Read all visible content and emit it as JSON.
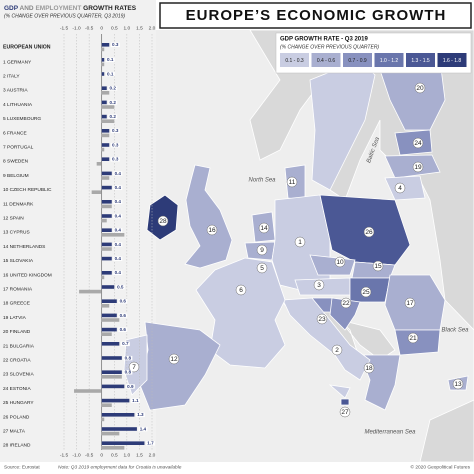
{
  "chart_data": {
    "type": "bar",
    "orientation": "horizontal",
    "title": "GROWTH RATES",
    "title_connector": "AND",
    "subtitle": "(% CHANGE OVER PREVIOUS QUARTER, Q3 2019)",
    "categories": [
      "EUROPEAN UNION",
      "1 GERMANY",
      "2 ITALY",
      "3 AUSTRIA",
      "4 LITHUANIA",
      "5 LUXEMBOURG",
      "6 FRANCE",
      "7 PORTUGAL",
      "8 SWEDEN",
      "9 BELGIUM",
      "10 CZECH REPUBLIC",
      "11 DENMARK",
      "12 SPAIN",
      "13 CYPRUS",
      "14 NETHERLANDS",
      "15 SLOVAKIA",
      "16 UNITED KINGDOM",
      "17 ROMANIA",
      "18 GREECE",
      "19 LATVIA",
      "20 FINLAND",
      "21 BULGARIA",
      "22 CROATIA",
      "23 SLOVENIA",
      "24 ESTONIA",
      "25 HUNGARY",
      "26 POLAND",
      "27 MALTA",
      "28 IRELAND"
    ],
    "series": [
      {
        "name": "GDP",
        "color": "#2d3b78",
        "values": [
          0.3,
          0.1,
          0.1,
          0.2,
          0.2,
          0.2,
          0.3,
          0.3,
          0.3,
          0.4,
          0.4,
          0.4,
          0.4,
          0.4,
          0.4,
          0.4,
          0.4,
          0.5,
          0.6,
          0.6,
          0.6,
          0.7,
          0.8,
          0.8,
          0.9,
          1.1,
          1.3,
          1.4,
          1.7
        ]
      },
      {
        "name": "EMPLOYMENT",
        "color": "#a9a9a9",
        "values": [
          0.1,
          0.1,
          0.0,
          0.3,
          0.5,
          0.5,
          0.3,
          0.1,
          -0.2,
          0.3,
          -0.4,
          0.4,
          0.2,
          0.9,
          0.4,
          0.0,
          0.1,
          -0.9,
          0.3,
          0.7,
          0.4,
          0.0,
          null,
          0.8,
          -1.1,
          0.4,
          0.1,
          0.7,
          0.9
        ]
      }
    ],
    "xlim": [
      -1.5,
      2.0
    ],
    "xticks": [
      -1.5,
      {
        "value": -1,
        "label": "-1.0"
      },
      -0.5,
      0,
      0.5,
      {
        "value": 1,
        "label": "1.0"
      },
      1.5,
      {
        "value": 2,
        "label": "2.0"
      }
    ],
    "grid": true
  },
  "map": {
    "title": "EUROPE’S ECONOMIC GROWTH",
    "legend": {
      "title": "GDP GROWTH RATE - Q3 2019",
      "subtitle": "(% CHANGE OVER PREVIOUS QUARTER)",
      "items": [
        {
          "label": "0.1 - 0.3",
          "color": "#c9cde2"
        },
        {
          "label": "0.4 - 0.6",
          "color": "#a9afd0"
        },
        {
          "label": "0.7 - 0.9",
          "color": "#8891bf"
        },
        {
          "label": "1.0 - 1.2",
          "color": "#6a76ac"
        },
        {
          "label": "1.3 - 1.5",
          "color": "#4b5895"
        },
        {
          "label": "1.6 - 1.8",
          "color": "#2d3b78"
        }
      ]
    },
    "labels": [
      "20",
      "24",
      "19",
      "4",
      "11",
      "28",
      "16",
      "14",
      "9",
      "5",
      "1",
      "26",
      "10",
      "15",
      "3",
      "25",
      "6",
      "22",
      "23",
      "17",
      "21",
      "2",
      "18",
      "12",
      "7",
      "13",
      "27"
    ],
    "seas": [
      "North Sea",
      "Baltic Sea",
      "Black Sea",
      "Mediterranean Sea"
    ]
  },
  "footer": {
    "source": "Source: Eurostat",
    "note": "Note: Q3 2019 employment data for Croatia is unavailable",
    "credit": "© 2020 Geopolitical Futures"
  }
}
